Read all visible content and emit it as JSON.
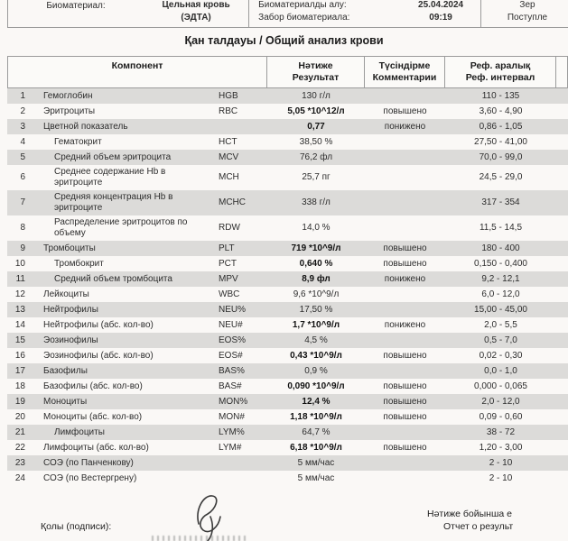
{
  "specimen_info": {
    "biomaterial_label": "Биоматериал:",
    "biomaterial_value": "Цельная кровь\n(ЭДТА)",
    "sampling_labels": "Биоматериалды алу:\nЗабор биоматериала:",
    "sampling_datetime": "25.04.2024\n09:19",
    "receipt_partial": "Зер\nПоступле"
  },
  "title": "Қан талдауы / Общий анализ крови",
  "table": {
    "headers": {
      "component": "Компонент",
      "result": "Нәтиже\nРезультат",
      "comment": "Түсіндірме\nКомментарии",
      "ref": "Реф. аралық\nРеф. интервал"
    },
    "rows": [
      {
        "num": "1",
        "name": "Гемоглобин",
        "code": "HGB",
        "result": "130 г/л",
        "bold": false,
        "comment": "",
        "ref": "110 - 135",
        "indent": false
      },
      {
        "num": "2",
        "name": "Эритроциты",
        "code": "RBC",
        "result": "5,05 *10^12/л",
        "bold": true,
        "comment": "повышено",
        "ref": "3,60 - 4,90",
        "indent": false
      },
      {
        "num": "3",
        "name": "Цветной показатель",
        "code": "",
        "result": "0,77",
        "bold": true,
        "comment": "понижено",
        "ref": "0,86 - 1,05",
        "indent": false
      },
      {
        "num": "4",
        "name": "Гематокрит",
        "code": "HCT",
        "result": "38,50 %",
        "bold": false,
        "comment": "",
        "ref": "27,50 - 41,00",
        "indent": true
      },
      {
        "num": "5",
        "name": "Средний объем эритроцита",
        "code": "MCV",
        "result": "76,2 фл",
        "bold": false,
        "comment": "",
        "ref": "70,0 - 99,0",
        "indent": true
      },
      {
        "num": "6",
        "name": "Среднее содержание Hb в эритроците",
        "code": "MCH",
        "result": "25,7 пг",
        "bold": false,
        "comment": "",
        "ref": "24,5 - 29,0",
        "indent": true
      },
      {
        "num": "7",
        "name": "Средняя концентрация Hb в эритроците",
        "code": "MCHC",
        "result": "338 г/л",
        "bold": false,
        "comment": "",
        "ref": "317 - 354",
        "indent": true
      },
      {
        "num": "8",
        "name": "Распределение эритроцитов по объему",
        "code": "RDW",
        "result": "14,0 %",
        "bold": false,
        "comment": "",
        "ref": "11,5 - 14,5",
        "indent": true
      },
      {
        "num": "9",
        "name": "Тромбоциты",
        "code": "PLT",
        "result": "719 *10^9/л",
        "bold": true,
        "comment": "повышено",
        "ref": "180 - 400",
        "indent": false
      },
      {
        "num": "10",
        "name": "Тромбокрит",
        "code": "PCT",
        "result": "0,640 %",
        "bold": true,
        "comment": "повышено",
        "ref": "0,150 - 0,400",
        "indent": true
      },
      {
        "num": "11",
        "name": "Средний объем тромбоцита",
        "code": "MPV",
        "result": "8,9 фл",
        "bold": true,
        "comment": "понижено",
        "ref": "9,2 - 12,1",
        "indent": true
      },
      {
        "num": "12",
        "name": "Лейкоциты",
        "code": "WBC",
        "result": "9,6 *10^9/л",
        "bold": false,
        "comment": "",
        "ref": "6,0 - 12,0",
        "indent": false
      },
      {
        "num": "13",
        "name": "Нейтрофилы",
        "code": "NEU%",
        "result": "17,50 %",
        "bold": false,
        "comment": "",
        "ref": "15,00 - 45,00",
        "indent": false
      },
      {
        "num": "14",
        "name": "Нейтрофилы (абс. кол-во)",
        "code": "NEU#",
        "result": "1,7 *10^9/л",
        "bold": true,
        "comment": "понижено",
        "ref": "2,0 - 5,5",
        "indent": false
      },
      {
        "num": "15",
        "name": "Эозинофилы",
        "code": "EOS%",
        "result": "4,5 %",
        "bold": false,
        "comment": "",
        "ref": "0,5 - 7,0",
        "indent": false
      },
      {
        "num": "16",
        "name": "Эозинофилы (абс. кол-во)",
        "code": "EOS#",
        "result": "0,43 *10^9/л",
        "bold": true,
        "comment": "повышено",
        "ref": "0,02 - 0,30",
        "indent": false
      },
      {
        "num": "17",
        "name": "Базофилы",
        "code": "BAS%",
        "result": "0,9 %",
        "bold": false,
        "comment": "",
        "ref": "0,0 - 1,0",
        "indent": false
      },
      {
        "num": "18",
        "name": "Базофилы (абс. кол-во)",
        "code": "BAS#",
        "result": "0,090 *10^9/л",
        "bold": true,
        "comment": "повышено",
        "ref": "0,000 - 0,065",
        "indent": false
      },
      {
        "num": "19",
        "name": "Моноциты",
        "code": "MON%",
        "result": "12,4 %",
        "bold": true,
        "comment": "повышено",
        "ref": "2,0 - 12,0",
        "indent": false
      },
      {
        "num": "20",
        "name": "Моноциты (абс. кол-во)",
        "code": "MON#",
        "result": "1,18 *10^9/л",
        "bold": true,
        "comment": "повышено",
        "ref": "0,09 - 0,60",
        "indent": false
      },
      {
        "num": "21",
        "name": "Лимфоциты",
        "code": "LYM%",
        "result": "64,7 %",
        "bold": false,
        "comment": "",
        "ref": "38 - 72",
        "indent": true
      },
      {
        "num": "22",
        "name": "Лимфоциты (абс. кол-во)",
        "code": "LYM#",
        "result": "6,18 *10^9/л",
        "bold": true,
        "comment": "повышено",
        "ref": "1,20 - 3,00",
        "indent": false
      },
      {
        "num": "23",
        "name": "СОЭ (по Панченкову)",
        "code": "",
        "result": "5 мм/час",
        "bold": false,
        "comment": "",
        "ref": "2 - 10",
        "indent": false
      },
      {
        "num": "24",
        "name": "СОЭ (по Вестергрену)",
        "code": "",
        "result": "5 мм/час",
        "bold": false,
        "comment": "",
        "ref": "2 - 10",
        "indent": false
      }
    ]
  },
  "footer": {
    "signature_label": "Қолы (подписи):",
    "report_note_line1": "Нәтиже бойынша е",
    "report_note_line2": "Отчет о результ"
  },
  "colors": {
    "stripe": "#dcdbd9",
    "border": "#9b9b9b",
    "text": "#2d2d2d",
    "abnormal_bold": "#111111",
    "background": "#faf8f6"
  }
}
